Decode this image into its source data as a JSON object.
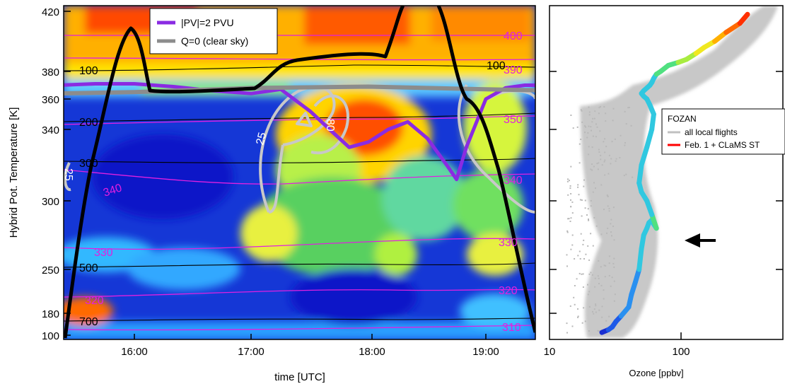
{
  "chart_data": [
    {
      "type": "heatmap",
      "xlabel": "time [UTC]",
      "ylabel": "Hybrid Pot. Temperature [K]",
      "x_ticks": [
        "16:00",
        "17:00",
        "18:00",
        "19:00"
      ],
      "xlim": [
        "15:20",
        "19:40"
      ],
      "y_ticks": [
        100,
        180,
        250,
        300,
        340,
        360,
        380,
        420
      ],
      "legend": {
        "position": "top-center",
        "entries": [
          {
            "label": "|PV|=2 PVU",
            "color": "#8a2be2"
          },
          {
            "label": "Q=0 (clear sky)",
            "color": "#8c8c8c"
          }
        ]
      },
      "contours": {
        "theta_magenta": {
          "color": "#e020e0",
          "labels": [
            "400",
            "390",
            "350",
            "340",
            "340",
            "330",
            "330",
            "320",
            "320",
            "310"
          ]
        },
        "pressure_black": {
          "color": "#000000",
          "labels": [
            "100",
            "100",
            "200",
            "300",
            "500",
            "700"
          ]
        },
        "gray_labels": [
          "25",
          "25",
          "80"
        ]
      },
      "series": [
        {
          "name": "|PV|=2 PVU",
          "color": "#8a2be2",
          "x": [
            "15:22",
            "15:40",
            "16:00",
            "16:20",
            "16:40",
            "17:00",
            "17:15",
            "17:30",
            "17:40",
            "17:50",
            "18:00",
            "18:10",
            "18:20",
            "18:30",
            "18:40",
            "18:45",
            "18:50",
            "19:00",
            "19:10",
            "19:20",
            "19:40"
          ],
          "y": [
            370,
            371,
            371,
            369,
            366,
            364,
            367,
            352,
            340,
            330,
            333,
            340,
            345,
            335,
            320,
            312,
            330,
            360,
            368,
            370,
            370
          ]
        },
        {
          "name": "Q=0 (clear sky)",
          "color": "#8c8c8c",
          "x": [
            "15:20",
            "16:00",
            "17:00",
            "18:00",
            "19:00",
            "19:40"
          ],
          "y": [
            364,
            365,
            368,
            369,
            367,
            366
          ]
        }
      ]
    },
    {
      "type": "scatter",
      "xlabel": "Ozone [ppbv]",
      "ylabel": "",
      "x_scale": "log",
      "xlim": [
        10,
        500
      ],
      "x_ticks": [
        "10",
        "100"
      ],
      "ylim": [
        100,
        420
      ],
      "legend": {
        "position": "middle-right",
        "title": "FOZAN",
        "entries": [
          {
            "label": "all local flights",
            "color": "#c0c0c0"
          },
          {
            "label": "Feb. 1 + CLaMS ST",
            "color": "#ff0000"
          }
        ]
      },
      "annotation": {
        "type": "arrow",
        "points_to": {
          "ozone": 100,
          "theta": 286
        }
      },
      "series": [
        {
          "name": "Feb. 1 + CLaMS ST",
          "x": [
            25,
            28,
            30,
            32,
            35,
            40,
            42,
            45,
            48,
            50,
            52,
            55,
            57,
            60,
            62,
            65,
            60,
            55,
            50,
            48,
            50,
            55,
            60,
            62,
            58,
            55,
            52,
            50,
            52,
            55,
            58,
            60,
            62,
            65,
            70,
            80,
            95,
            110,
            130,
            150,
            180,
            220,
            280,
            320
          ],
          "y": [
            110,
            120,
            130,
            150,
            170,
            190,
            210,
            230,
            250,
            265,
            275,
            280,
            284,
            286,
            283,
            280,
            290,
            300,
            305,
            310,
            320,
            330,
            340,
            350,
            356,
            360,
            362,
            364,
            366,
            368,
            370,
            372,
            375,
            378,
            380,
            384,
            386,
            388,
            392,
            396,
            400,
            406,
            412,
            418
          ]
        }
      ]
    }
  ]
}
